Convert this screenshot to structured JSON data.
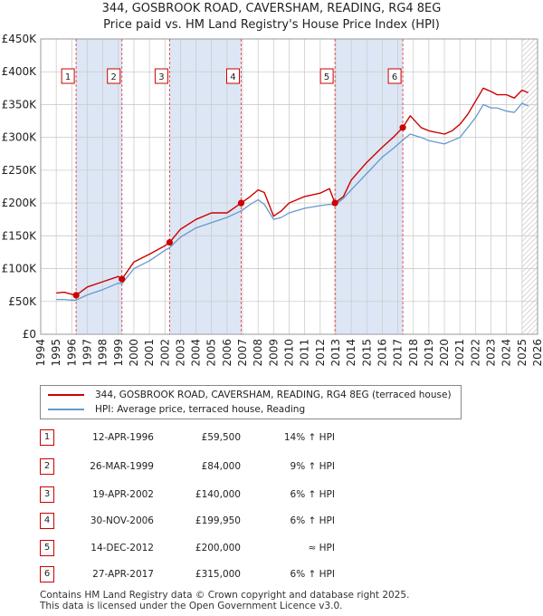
{
  "title_line1": "344, GOSBROOK ROAD, CAVERSHAM, READING, RG4 8EG",
  "title_line2": "Price paid vs. HM Land Registry's House Price Index (HPI)",
  "colors": {
    "property": "#cc0000",
    "hpi": "#6699cc",
    "shade": "#dde6f5",
    "vline": "#dd4444",
    "grid": "#cccccc"
  },
  "chart_data": {
    "type": "line",
    "ylim": [
      0,
      450000
    ],
    "xlim": [
      1994.0,
      2026.0
    ],
    "y_ticks": [
      0,
      50000,
      100000,
      150000,
      200000,
      250000,
      300000,
      350000,
      400000,
      450000
    ],
    "y_tick_labels": [
      "£0",
      "£50K",
      "£100K",
      "£150K",
      "£200K",
      "£250K",
      "£300K",
      "£350K",
      "£400K",
      "£450K"
    ],
    "x_ticks": [
      1994,
      1995,
      1996,
      1997,
      1998,
      1999,
      2000,
      2001,
      2002,
      2003,
      2004,
      2005,
      2006,
      2007,
      2008,
      2009,
      2010,
      2011,
      2012,
      2013,
      2014,
      2015,
      2016,
      2017,
      2018,
      2019,
      2020,
      2021,
      2022,
      2023,
      2024,
      2025,
      2026
    ],
    "shaded_ranges": [
      [
        1996.28,
        1999.23
      ],
      [
        2002.3,
        2006.91
      ],
      [
        2012.95,
        2017.32
      ]
    ],
    "hatched_range": [
      2025.0,
      2026.0
    ],
    "series": [
      {
        "name": "344, GOSBROOK ROAD, CAVERSHAM, READING, RG4 8EG (terraced house)",
        "x": [
          1995.0,
          1995.5,
          1996.0,
          1996.28,
          1997.0,
          1998.0,
          1999.0,
          1999.23,
          2000.0,
          2001.0,
          2002.0,
          2002.3,
          2003.0,
          2004.0,
          2005.0,
          2006.0,
          2006.91,
          2007.5,
          2008.0,
          2008.4,
          2009.0,
          2009.5,
          2010.0,
          2011.0,
          2012.0,
          2012.6,
          2012.95,
          2013.5,
          2014.0,
          2015.0,
          2016.0,
          2016.7,
          2017.32,
          2017.8,
          2018.5,
          2019.0,
          2020.0,
          2020.5,
          2021.0,
          2021.5,
          2022.0,
          2022.5,
          2023.0,
          2023.4,
          2024.0,
          2024.5,
          2025.0,
          2025.4
        ],
        "values": [
          63000,
          64000,
          61000,
          59500,
          72000,
          80000,
          88000,
          84000,
          110000,
          122000,
          135000,
          140000,
          160000,
          175000,
          185000,
          185000,
          199950,
          210000,
          220000,
          216000,
          180000,
          188000,
          200000,
          210000,
          215000,
          222000,
          200000,
          210000,
          235000,
          262000,
          285000,
          300000,
          315000,
          333000,
          315000,
          310000,
          305000,
          310000,
          320000,
          335000,
          355000,
          375000,
          370000,
          365000,
          365000,
          360000,
          372000,
          368000
        ]
      },
      {
        "name": "HPI: Average price, terraced house, Reading",
        "x": [
          1995.0,
          1995.5,
          1996.0,
          1996.28,
          1997.0,
          1998.0,
          1999.0,
          1999.23,
          2000.0,
          2001.0,
          2002.0,
          2002.3,
          2003.0,
          2004.0,
          2005.0,
          2006.0,
          2006.91,
          2007.5,
          2008.0,
          2008.4,
          2009.0,
          2009.5,
          2010.0,
          2011.0,
          2012.0,
          2012.6,
          2012.95,
          2013.5,
          2014.0,
          2015.0,
          2016.0,
          2016.7,
          2017.32,
          2017.8,
          2018.5,
          2019.0,
          2020.0,
          2020.5,
          2021.0,
          2021.5,
          2022.0,
          2022.5,
          2023.0,
          2023.4,
          2024.0,
          2024.5,
          2025.0,
          2025.4
        ],
        "values": [
          53000,
          53000,
          52000,
          52000,
          60000,
          68000,
          78000,
          77000,
          100000,
          112000,
          128000,
          132000,
          148000,
          162000,
          170000,
          178000,
          188000,
          198000,
          205000,
          198000,
          175000,
          178000,
          185000,
          192000,
          196000,
          198000,
          197000,
          207000,
          220000,
          245000,
          270000,
          283000,
          296000,
          305000,
          300000,
          295000,
          290000,
          295000,
          300000,
          315000,
          330000,
          350000,
          345000,
          345000,
          340000,
          338000,
          352000,
          348000
        ]
      }
    ],
    "sales": [
      {
        "label": "1",
        "date": "12-APR-1996",
        "x": 1996.28,
        "price": 59500,
        "price_text": "£59,500",
        "hpi_text": "14% ↑ HPI"
      },
      {
        "label": "2",
        "date": "26-MAR-1999",
        "x": 1999.23,
        "price": 84000,
        "price_text": "£84,000",
        "hpi_text": "9% ↑ HPI"
      },
      {
        "label": "3",
        "date": "19-APR-2002",
        "x": 2002.3,
        "price": 140000,
        "price_text": "£140,000",
        "hpi_text": "6% ↑ HPI"
      },
      {
        "label": "4",
        "date": "30-NOV-2006",
        "x": 2006.91,
        "price": 199950,
        "price_text": "£199,950",
        "hpi_text": "6% ↑ HPI"
      },
      {
        "label": "5",
        "date": "14-DEC-2012",
        "x": 2012.95,
        "price": 200000,
        "price_text": "£200,000",
        "hpi_text": "≈ HPI"
      },
      {
        "label": "6",
        "date": "27-APR-2017",
        "x": 2017.32,
        "price": 315000,
        "price_text": "£315,000",
        "hpi_text": "6% ↑ HPI"
      }
    ]
  },
  "legend": {
    "property_label": "344, GOSBROOK ROAD, CAVERSHAM, READING, RG4 8EG (terraced house)",
    "hpi_label": "HPI: Average price, terraced house, Reading"
  },
  "footer": {
    "line1": "Contains HM Land Registry data © Crown copyright and database right 2025.",
    "line2": "This data is licensed under the Open Government Licence v3.0."
  }
}
